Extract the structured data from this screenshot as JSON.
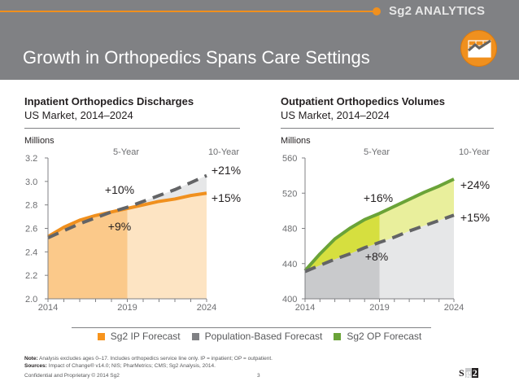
{
  "header": {
    "brand": "Sg2 ANALYTICS",
    "title": "Growth in Orthopedics Spans Care Settings",
    "logo_icon": "chart-trend-icon",
    "accent_color": "#f0901e",
    "background_color": "#808184"
  },
  "panels": [
    {
      "title": "Inpatient Orthopedics Discharges",
      "subtitle": "US Market, 2014–2024",
      "units": "Millions"
    },
    {
      "title": "Outpatient Orthopedics Volumes",
      "subtitle": "US Market, 2014–2024",
      "units": "Millions"
    }
  ],
  "chart_data": [
    {
      "type": "area",
      "title": "Inpatient Orthopedics Discharges",
      "subtitle": "US Market, 2014–2024",
      "ylabel": "Millions",
      "xlabel": "",
      "ylim": [
        2.0,
        3.2
      ],
      "yticks": [
        2.0,
        2.2,
        2.4,
        2.6,
        2.8,
        3.0,
        3.2
      ],
      "ytick_labels": [
        "2.0",
        "2.2",
        "2.4",
        "2.6",
        "2.8",
        "3.0",
        "3.2"
      ],
      "xlim": [
        2014,
        2024
      ],
      "xtick_labels": [
        "2014",
        "2019",
        "2024"
      ],
      "x": [
        2014,
        2015,
        2016,
        2017,
        2018,
        2019,
        2020,
        2021,
        2022,
        2023,
        2024
      ],
      "series": [
        {
          "name": "Sg2 IP Forecast",
          "style": "solid",
          "color": "#f0901e",
          "values": [
            2.53,
            2.61,
            2.67,
            2.71,
            2.74,
            2.77,
            2.8,
            2.83,
            2.85,
            2.88,
            2.9
          ]
        },
        {
          "name": "Population-Based Forecast",
          "style": "dashed",
          "color": "#636466",
          "values": [
            2.52,
            2.58,
            2.64,
            2.69,
            2.74,
            2.78,
            2.83,
            2.88,
            2.93,
            2.99,
            3.05
          ]
        }
      ],
      "period_labels": {
        "five_year": "5-Year",
        "ten_year": "10-Year"
      },
      "annotations": {
        "forecast_5yr": "+9%",
        "population_5yr": "+10%",
        "forecast_10yr": "+15%",
        "population_10yr": "+21%"
      },
      "colors": {
        "fill_5yr": "#fbc98a",
        "fill_10yr": "#fde4c3",
        "gap_fill": "#e6e7e8"
      }
    },
    {
      "type": "area",
      "title": "Outpatient Orthopedics Volumes",
      "subtitle": "US Market, 2014–2024",
      "ylabel": "Millions",
      "xlabel": "",
      "ylim": [
        400,
        560
      ],
      "yticks": [
        400,
        440,
        480,
        520,
        560
      ],
      "ytick_labels": [
        "400",
        "440",
        "480",
        "520",
        "560"
      ],
      "xlim": [
        2014,
        2024
      ],
      "xtick_labels": [
        "2014",
        "2019",
        "2024"
      ],
      "x": [
        2014,
        2015,
        2016,
        2017,
        2018,
        2019,
        2020,
        2021,
        2022,
        2023,
        2024
      ],
      "series": [
        {
          "name": "Sg2 OP Forecast",
          "style": "solid",
          "color": "#6aa338",
          "values": [
            432,
            451,
            468,
            480,
            490,
            497,
            505,
            513,
            521,
            528,
            536
          ]
        },
        {
          "name": "Population-Based Forecast",
          "style": "dashed",
          "color": "#636466",
          "values": [
            431,
            438,
            445,
            451,
            458,
            464,
            470,
            477,
            483,
            489,
            495
          ]
        }
      ],
      "period_labels": {
        "five_year": "5-Year",
        "ten_year": "10-Year"
      },
      "annotations": {
        "forecast_5yr": "+16%",
        "population_5yr": "+8%",
        "forecast_10yr": "+24%",
        "population_10yr": "+15%"
      },
      "colors": {
        "fill_5yr": "#d6df3f",
        "fill_10yr": "#e9ef9c",
        "base_5yr": "#c9cacc",
        "base_10yr": "#e6e7e8"
      }
    }
  ],
  "legend": [
    {
      "label": "Sg2 IP Forecast",
      "color": "#f7941d"
    },
    {
      "label": "Population-Based Forecast",
      "color": "#808184"
    },
    {
      "label": "Sg2 OP Forecast",
      "color": "#6aa338"
    }
  ],
  "notes": {
    "note_label": "Note:",
    "note_text": " Analysis excludes ages 0–17. Includes orthopedics service line only. IP = inpatient; OP = outpatient.",
    "sources_label": "Sources:",
    "sources_text": " Impact of Change® v14.0; NIS; PharMetrics; CMS; Sg2 Analysis, 2014."
  },
  "footer": {
    "confidential": "Confidential and Proprietary © 2014 Sg2",
    "page_number": "3",
    "logo_text": [
      "S",
      "g",
      "2"
    ]
  }
}
